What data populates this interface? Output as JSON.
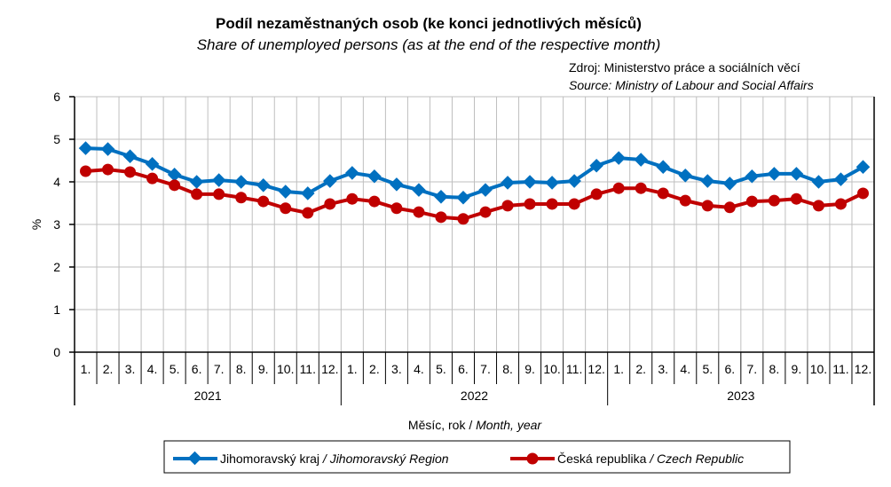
{
  "chart_data": {
    "type": "line",
    "title": "Podíl nezaměstnaných osob (ke konci jednotlivých měsíců)",
    "subtitle": "Share of unemployed persons (as at the end of the respective month)",
    "source_cz": "Zdroj:  Ministerstvo  práce a sociálních věcí",
    "source_en": "Source: Ministry of Labour and Social Affairs",
    "ylabel": "%",
    "xlabel_cz": "Měsíc, rok / ",
    "xlabel_en": "Month, year",
    "ylim": [
      0,
      6
    ],
    "yticks": [
      "0",
      "1",
      "2",
      "3",
      "4",
      "5",
      "6"
    ],
    "months": [
      "1.",
      "2.",
      "3.",
      "4.",
      "5.",
      "6.",
      "7.",
      "8.",
      "9.",
      "10.",
      "11.",
      "12."
    ],
    "years": [
      "2021",
      "2022",
      "2023"
    ],
    "grid": true,
    "legend_position": "bottom",
    "series": [
      {
        "name_cz": "Jihomoravský kraj",
        "name_en": " / Jihomoravský Region",
        "color": "#0070c0",
        "marker": "diamond",
        "values": [
          4.79,
          4.77,
          4.6,
          4.42,
          4.17,
          4.0,
          4.04,
          4.0,
          3.92,
          3.77,
          3.73,
          4.02,
          4.21,
          4.13,
          3.94,
          3.81,
          3.65,
          3.63,
          3.81,
          3.98,
          4.0,
          3.98,
          4.02,
          4.38,
          4.56,
          4.52,
          4.35,
          4.15,
          4.02,
          3.96,
          4.13,
          4.19,
          4.19,
          4.0,
          4.06,
          4.35
        ]
      },
      {
        "name_cz": "Česká republika",
        "name_en": " / Czech Republic",
        "color": "#c00000",
        "marker": "circle",
        "values": [
          4.25,
          4.29,
          4.23,
          4.08,
          3.92,
          3.71,
          3.71,
          3.63,
          3.54,
          3.38,
          3.27,
          3.48,
          3.6,
          3.54,
          3.38,
          3.29,
          3.17,
          3.13,
          3.29,
          3.44,
          3.48,
          3.48,
          3.48,
          3.71,
          3.85,
          3.85,
          3.73,
          3.56,
          3.44,
          3.4,
          3.54,
          3.56,
          3.6,
          3.44,
          3.48,
          3.73
        ]
      }
    ]
  }
}
